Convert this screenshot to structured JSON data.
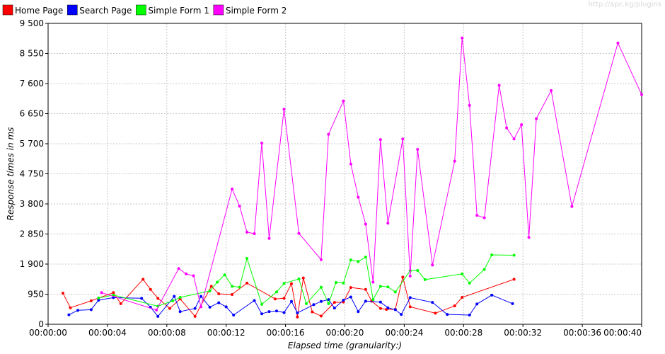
{
  "watermark": "http://apc.kg/plugins",
  "chart_data": {
    "type": "line",
    "xlabel": "Elapsed time (granularity:)",
    "ylabel": "Response times in ms",
    "xlim": [
      0,
      40
    ],
    "ylim": [
      0,
      9500
    ],
    "x_ticks": [
      0,
      4,
      8,
      12,
      16,
      20,
      24,
      28,
      32,
      36,
      40
    ],
    "x_tick_labels": [
      "00:00:00",
      "00:00:04",
      "00:00:08",
      "00:00:12",
      "00:00:16",
      "00:00:20",
      "00:00:24",
      "00:00:28",
      "00:00:32",
      "00:00:36",
      "00:00:40"
    ],
    "y_ticks": [
      0,
      950,
      1900,
      2850,
      3800,
      4750,
      5700,
      6650,
      7600,
      8550,
      9500
    ],
    "y_tick_labels": [
      "0",
      "950",
      "1 900",
      "2 850",
      "3 800",
      "4 750",
      "5 700",
      "6 650",
      "7 600",
      "8 550",
      "9 500"
    ],
    "grid": true,
    "legend_position": "top-left",
    "series": [
      {
        "name": "Home Page",
        "color": "#ff0000",
        "points": [
          [
            1.0,
            980
          ],
          [
            1.5,
            520
          ],
          [
            2.9,
            740
          ],
          [
            4.4,
            1000
          ],
          [
            4.9,
            650
          ],
          [
            6.4,
            1420
          ],
          [
            6.9,
            1100
          ],
          [
            7.4,
            820
          ],
          [
            8.2,
            500
          ],
          [
            8.9,
            800
          ],
          [
            9.9,
            250
          ],
          [
            11.0,
            1200
          ],
          [
            11.5,
            960
          ],
          [
            12.4,
            940
          ],
          [
            13.4,
            1300
          ],
          [
            15.3,
            800
          ],
          [
            15.9,
            820
          ],
          [
            16.4,
            1280
          ],
          [
            16.8,
            230
          ],
          [
            17.2,
            1460
          ],
          [
            17.8,
            390
          ],
          [
            18.4,
            260
          ],
          [
            19.3,
            690
          ],
          [
            19.9,
            700
          ],
          [
            20.4,
            1160
          ],
          [
            21.4,
            1100
          ],
          [
            21.8,
            730
          ],
          [
            22.4,
            500
          ],
          [
            22.8,
            470
          ],
          [
            23.4,
            470
          ],
          [
            23.9,
            1490
          ],
          [
            24.4,
            550
          ],
          [
            26.1,
            350
          ],
          [
            27.4,
            580
          ],
          [
            27.9,
            850
          ],
          [
            31.4,
            1420
          ]
        ]
      },
      {
        "name": "Search Page",
        "color": "#0000ff",
        "points": [
          [
            1.4,
            300
          ],
          [
            2.0,
            440
          ],
          [
            2.9,
            460
          ],
          [
            3.4,
            760
          ],
          [
            4.4,
            840
          ],
          [
            6.3,
            820
          ],
          [
            6.9,
            540
          ],
          [
            7.4,
            250
          ],
          [
            8.5,
            880
          ],
          [
            8.9,
            400
          ],
          [
            9.9,
            500
          ],
          [
            10.3,
            880
          ],
          [
            10.9,
            540
          ],
          [
            11.5,
            680
          ],
          [
            12.0,
            550
          ],
          [
            12.5,
            290
          ],
          [
            13.9,
            750
          ],
          [
            14.4,
            330
          ],
          [
            14.9,
            400
          ],
          [
            15.4,
            420
          ],
          [
            15.9,
            370
          ],
          [
            16.4,
            720
          ],
          [
            16.8,
            360
          ],
          [
            17.9,
            620
          ],
          [
            18.4,
            720
          ],
          [
            18.9,
            780
          ],
          [
            19.3,
            510
          ],
          [
            19.9,
            760
          ],
          [
            20.4,
            860
          ],
          [
            20.9,
            400
          ],
          [
            21.4,
            730
          ],
          [
            22.4,
            700
          ],
          [
            22.9,
            520
          ],
          [
            23.4,
            460
          ],
          [
            23.8,
            310
          ],
          [
            24.4,
            840
          ],
          [
            25.9,
            690
          ],
          [
            26.9,
            310
          ],
          [
            28.4,
            290
          ],
          [
            28.9,
            640
          ],
          [
            29.9,
            920
          ],
          [
            31.3,
            650
          ]
        ]
      },
      {
        "name": "Simple Form 1",
        "color": "#00ff00",
        "points": [
          [
            3.4,
            830
          ],
          [
            4.4,
            920
          ],
          [
            7.4,
            570
          ],
          [
            8.4,
            740
          ],
          [
            8.9,
            850
          ],
          [
            10.9,
            1050
          ],
          [
            11.4,
            1330
          ],
          [
            11.9,
            1560
          ],
          [
            12.4,
            1200
          ],
          [
            12.9,
            1170
          ],
          [
            13.4,
            2080
          ],
          [
            14.4,
            630
          ],
          [
            15.4,
            1020
          ],
          [
            15.9,
            1290
          ],
          [
            16.9,
            1430
          ],
          [
            17.4,
            650
          ],
          [
            18.4,
            1170
          ],
          [
            18.9,
            650
          ],
          [
            19.4,
            1320
          ],
          [
            19.9,
            1300
          ],
          [
            20.4,
            2030
          ],
          [
            20.9,
            1980
          ],
          [
            21.4,
            2120
          ],
          [
            21.9,
            780
          ],
          [
            22.4,
            1200
          ],
          [
            22.9,
            1180
          ],
          [
            23.4,
            1020
          ],
          [
            24.4,
            1690
          ],
          [
            24.9,
            1700
          ],
          [
            25.4,
            1410
          ],
          [
            27.9,
            1590
          ],
          [
            28.4,
            1300
          ],
          [
            29.4,
            1730
          ],
          [
            29.9,
            2190
          ],
          [
            31.4,
            2180
          ]
        ]
      },
      {
        "name": "Simple Form 2",
        "color": "#ff00ff",
        "points": [
          [
            3.6,
            1000
          ],
          [
            7.3,
            450
          ],
          [
            8.8,
            1760
          ],
          [
            9.3,
            1590
          ],
          [
            9.8,
            1530
          ],
          [
            10.3,
            550
          ],
          [
            12.4,
            4270
          ],
          [
            12.9,
            3730
          ],
          [
            13.4,
            2910
          ],
          [
            13.9,
            2860
          ],
          [
            14.4,
            5720
          ],
          [
            14.9,
            2710
          ],
          [
            15.9,
            6790
          ],
          [
            16.9,
            2870
          ],
          [
            18.4,
            2040
          ],
          [
            18.9,
            6000
          ],
          [
            19.9,
            7050
          ],
          [
            20.4,
            5060
          ],
          [
            20.9,
            4010
          ],
          [
            21.4,
            3160
          ],
          [
            21.9,
            1330
          ],
          [
            22.4,
            5830
          ],
          [
            22.9,
            3190
          ],
          [
            23.9,
            5850
          ],
          [
            24.4,
            1520
          ],
          [
            24.9,
            5520
          ],
          [
            25.9,
            1870
          ],
          [
            27.4,
            5150
          ],
          [
            27.9,
            9040
          ],
          [
            28.4,
            6910
          ],
          [
            28.9,
            3440
          ],
          [
            29.4,
            3360
          ],
          [
            30.4,
            7540
          ],
          [
            30.9,
            6200
          ],
          [
            31.4,
            5850
          ],
          [
            31.9,
            6300
          ],
          [
            32.4,
            2740
          ],
          [
            32.9,
            6490
          ],
          [
            33.9,
            7380
          ],
          [
            35.3,
            3720
          ],
          [
            38.4,
            8880
          ],
          [
            40.0,
            7250
          ]
        ]
      }
    ]
  }
}
